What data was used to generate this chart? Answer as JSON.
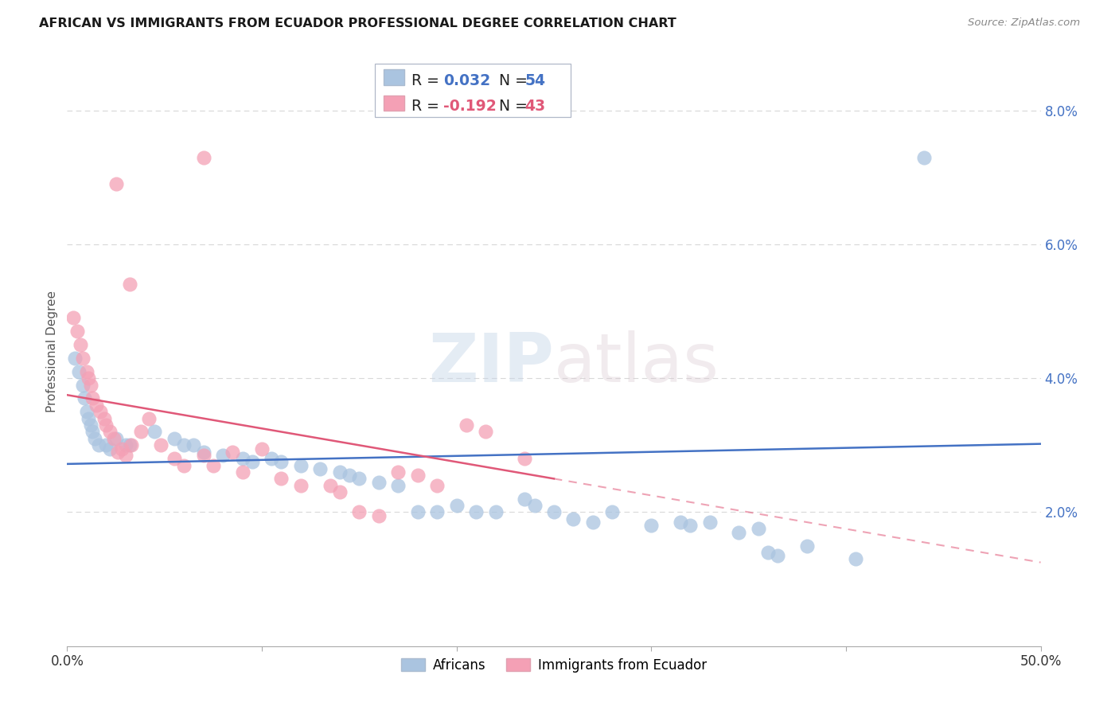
{
  "title": "AFRICAN VS IMMIGRANTS FROM ECUADOR PROFESSIONAL DEGREE CORRELATION CHART",
  "source": "Source: ZipAtlas.com",
  "ylabel": "Professional Degree",
  "legend": {
    "african": {
      "R": "0.032",
      "N": "54",
      "color": "#aac4e0"
    },
    "ecuador": {
      "R": "-0.192",
      "N": "43",
      "color": "#f4a0b5"
    }
  },
  "african_points": [
    [
      0.4,
      4.3
    ],
    [
      0.6,
      4.1
    ],
    [
      0.8,
      3.9
    ],
    [
      0.9,
      3.7
    ],
    [
      1.0,
      3.5
    ],
    [
      1.1,
      3.4
    ],
    [
      1.2,
      3.3
    ],
    [
      1.3,
      3.2
    ],
    [
      1.4,
      3.1
    ],
    [
      1.6,
      3.0
    ],
    [
      2.0,
      3.0
    ],
    [
      2.2,
      2.95
    ],
    [
      2.5,
      3.1
    ],
    [
      3.0,
      3.0
    ],
    [
      3.2,
      3.0
    ],
    [
      4.5,
      3.2
    ],
    [
      5.5,
      3.1
    ],
    [
      6.0,
      3.0
    ],
    [
      6.5,
      3.0
    ],
    [
      7.0,
      2.9
    ],
    [
      8.0,
      2.85
    ],
    [
      9.0,
      2.8
    ],
    [
      9.5,
      2.75
    ],
    [
      10.5,
      2.8
    ],
    [
      11.0,
      2.75
    ],
    [
      12.0,
      2.7
    ],
    [
      13.0,
      2.65
    ],
    [
      14.0,
      2.6
    ],
    [
      14.5,
      2.55
    ],
    [
      15.0,
      2.5
    ],
    [
      16.0,
      2.45
    ],
    [
      17.0,
      2.4
    ],
    [
      18.0,
      2.0
    ],
    [
      19.0,
      2.0
    ],
    [
      20.0,
      2.1
    ],
    [
      21.0,
      2.0
    ],
    [
      22.0,
      2.0
    ],
    [
      23.5,
      2.2
    ],
    [
      24.0,
      2.1
    ],
    [
      25.0,
      2.0
    ],
    [
      26.0,
      1.9
    ],
    [
      27.0,
      1.85
    ],
    [
      28.0,
      2.0
    ],
    [
      30.0,
      1.8
    ],
    [
      31.5,
      1.85
    ],
    [
      32.0,
      1.8
    ],
    [
      33.0,
      1.85
    ],
    [
      34.5,
      1.7
    ],
    [
      35.5,
      1.75
    ],
    [
      36.0,
      1.4
    ],
    [
      36.5,
      1.35
    ],
    [
      38.0,
      1.5
    ],
    [
      40.5,
      1.3
    ],
    [
      44.0,
      7.3
    ]
  ],
  "ecuador_points": [
    [
      0.3,
      4.9
    ],
    [
      0.5,
      4.7
    ],
    [
      0.7,
      4.5
    ],
    [
      0.8,
      4.3
    ],
    [
      1.0,
      4.1
    ],
    [
      1.1,
      4.0
    ],
    [
      1.2,
      3.9
    ],
    [
      1.3,
      3.7
    ],
    [
      1.5,
      3.6
    ],
    [
      1.7,
      3.5
    ],
    [
      1.9,
      3.4
    ],
    [
      2.0,
      3.3
    ],
    [
      2.2,
      3.2
    ],
    [
      2.4,
      3.1
    ],
    [
      2.6,
      2.9
    ],
    [
      2.8,
      2.95
    ],
    [
      3.0,
      2.85
    ],
    [
      3.3,
      3.0
    ],
    [
      3.8,
      3.2
    ],
    [
      4.2,
      3.4
    ],
    [
      4.8,
      3.0
    ],
    [
      5.5,
      2.8
    ],
    [
      6.0,
      2.7
    ],
    [
      7.0,
      2.85
    ],
    [
      7.5,
      2.7
    ],
    [
      8.5,
      2.9
    ],
    [
      9.0,
      2.6
    ],
    [
      10.0,
      2.95
    ],
    [
      11.0,
      2.5
    ],
    [
      12.0,
      2.4
    ],
    [
      13.5,
      2.4
    ],
    [
      14.0,
      2.3
    ],
    [
      15.0,
      2.0
    ],
    [
      16.0,
      1.95
    ],
    [
      17.0,
      2.6
    ],
    [
      18.0,
      2.55
    ],
    [
      19.0,
      2.4
    ],
    [
      20.5,
      3.3
    ],
    [
      21.5,
      3.2
    ],
    [
      23.5,
      2.8
    ],
    [
      7.0,
      7.3
    ],
    [
      3.2,
      5.4
    ],
    [
      2.5,
      6.9
    ]
  ],
  "xlim": [
    0,
    50
  ],
  "ylim": [
    0,
    8.8
  ],
  "watermark": "ZIPatlas",
  "background_color": "#ffffff",
  "grid_color": "#d8d8d8",
  "african_color": "#aac4e0",
  "ecuador_color": "#f4a0b5",
  "african_line_color": "#4472c4",
  "ecuador_line_color": "#e05878",
  "african_line": {
    "intercept": 2.72,
    "slope": 0.006
  },
  "ecuador_line": {
    "intercept": 3.75,
    "slope": -0.05
  },
  "ecuador_solid_end": 25
}
